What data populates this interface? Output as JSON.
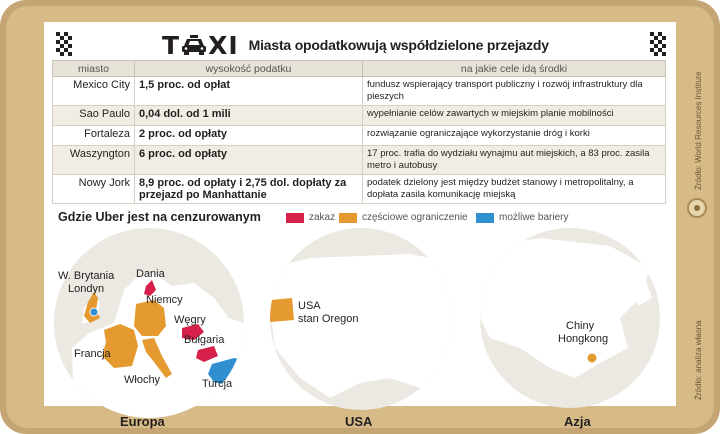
{
  "logo": {
    "text_left": "T",
    "text_right": "XI"
  },
  "title": "Miasta opodatkowują współdzielone przejazdy",
  "sources": {
    "table_source": "Źródło: World Resources Institute",
    "map_source": "Źródło: analiza własna"
  },
  "table": {
    "headers": [
      "miasto",
      "wysokość podatku",
      "na jakie cele idą środki"
    ],
    "rows": [
      {
        "city": "Mexico City",
        "tax": "1,5 proc. od opłat",
        "use": "fundusz wspierający transport publiczny i rozwój infrastruktury dla pieszych"
      },
      {
        "city": "Sao Paulo",
        "tax": "0,04 dol. od 1 mili",
        "use": "wypełnianie celów zawartych w miejskim planie mobilności"
      },
      {
        "city": "Fortaleza",
        "tax": "2 proc. od opłaty",
        "use": "rozwiązanie ograniczające wykorzystanie dróg i korki"
      },
      {
        "city": "Waszyngton",
        "tax": "6 proc. od opłaty",
        "use": "17 proc. trafia do wydziału wynajmu aut miejskich, a 83 proc. zasila metro i autobusy"
      },
      {
        "city": "Nowy Jork",
        "tax": "8,9 proc. od opłaty i 2,75 dol. dopłaty za przejazd po Manhattanie",
        "use": "podatek dzielony jest między budżet stanowy i metropolitalny, a dopłata zasila komunikację miejską"
      }
    ]
  },
  "map_section": {
    "title": "Gdzie Uber jest na cenzurowanym",
    "legend": [
      {
        "label": "zakaz",
        "color": "#d6204a"
      },
      {
        "label": "częściowe ograniczenie",
        "color": "#e59a2f"
      },
      {
        "label": "możliwe bariery",
        "color": "#2f8fcf"
      }
    ],
    "regions": [
      {
        "name": "Europa",
        "labels": {
          "uk": "W. Brytania",
          "london": "Londyn",
          "denmark": "Dania",
          "germany": "Niemcy",
          "hungary": "Węgry",
          "bulgaria": "Bułgaria",
          "france": "Francja",
          "italy": "Włochy",
          "turkey": "Turcja"
        }
      },
      {
        "name": "USA",
        "labels": {
          "state": "USA\nstan Oregon"
        }
      },
      {
        "name": "Azja",
        "labels": {
          "china": "Chiny",
          "hk": "Hongkong"
        }
      }
    ]
  },
  "colors": {
    "frame": "#c4a573",
    "ban": "#d6204a",
    "partial": "#e59a2f",
    "possible": "#2f8fcf",
    "land": "#ffffff",
    "sea": "#ece8e2"
  }
}
